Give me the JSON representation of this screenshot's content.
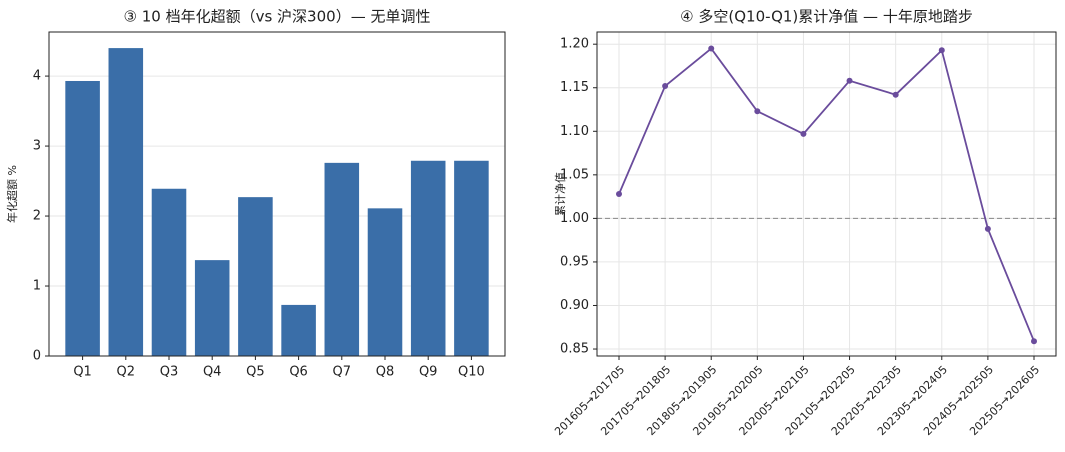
{
  "chart_data": [
    {
      "type": "bar",
      "title": "③ 10 档年化超额（vs 沪深300）— 无单调性",
      "y_label": "年化超额 %",
      "categories": [
        "Q1",
        "Q2",
        "Q3",
        "Q4",
        "Q5",
        "Q6",
        "Q7",
        "Q8",
        "Q9",
        "Q10"
      ],
      "values": [
        3.93,
        4.4,
        2.39,
        1.37,
        2.27,
        0.73,
        2.76,
        2.11,
        2.79,
        2.79
      ],
      "color": "#3a6ea8",
      "ylim": [
        0,
        4.63
      ],
      "yticks": [
        0,
        1,
        2,
        3,
        4
      ],
      "grid": true
    },
    {
      "type": "line",
      "title": "④ 多空(Q10-Q1)累计净值 — 十年原地踏步",
      "y_label": "累计净值",
      "categories": [
        "201605→201705",
        "201705→201805",
        "201805→201905",
        "201905→202005",
        "202005→202105",
        "202105→202205",
        "202205→202305",
        "202305→202405",
        "202405→202505",
        "202505→202605"
      ],
      "values": [
        1.028,
        1.152,
        1.195,
        1.123,
        1.097,
        1.158,
        1.142,
        1.193,
        0.988,
        0.859
      ],
      "color": "#6a4c9c",
      "ylim": [
        0.842,
        1.214
      ],
      "yticks": [
        {
          "value": 0.85,
          "label": "0.85"
        },
        {
          "value": 0.9,
          "label": "0.90"
        },
        0.95,
        {
          "value": 1.0,
          "label": "1.00"
        },
        1.05,
        {
          "value": 1.1,
          "label": "1.10"
        },
        1.15,
        {
          "value": 1.2,
          "label": "1.20"
        }
      ],
      "reference_line": 1.0,
      "grid": true
    }
  ]
}
